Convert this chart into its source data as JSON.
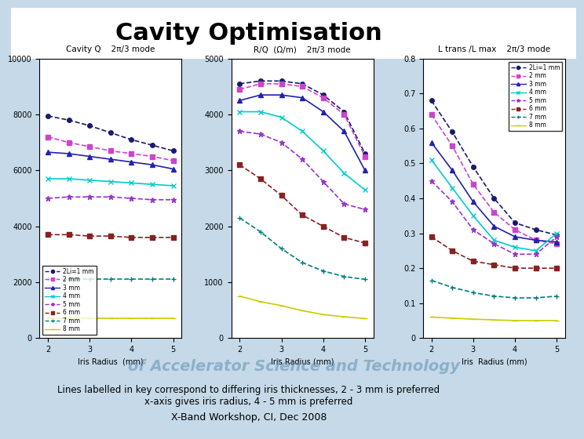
{
  "title": "Cavity Optimisation",
  "subtitle_text": "Lines labelled in key correspond to differing iris thicknesses, 2 - 3 mm is preferred\nx-axis gives iris radius, 4 - 5 mm is preferred",
  "footer": "X-Band Workshop, CI, Dec 2008",
  "bg_color": "#c5d9e8",
  "plot_bg": "#ffffff",
  "iris_radii": [
    2,
    2.5,
    3,
    3.5,
    4,
    4.5,
    5
  ],
  "legend_labels": [
    "2Li=1 mm",
    "2 mm",
    "3 mm",
    "4 mm",
    "5 mm",
    "6 mm",
    "7 mm",
    "8 mm"
  ],
  "legend_colors": [
    "#1a1a6e",
    "#cc44cc",
    "#2222aa",
    "#00cccc",
    "#9933cc",
    "#882222",
    "#008080",
    "#cccc00"
  ],
  "legend_markers": [
    "o",
    "s",
    "^",
    "x",
    "*",
    "s",
    "+",
    "-"
  ],
  "legend_linestyles": [
    "--",
    "--",
    "-",
    "-",
    "--",
    "--",
    "--",
    "-"
  ],
  "plot1_title": "Cavity Q    2π/3 mode",
  "plot1_ylabel": "",
  "plot1_xlabel": "Iris Radius  (mm)",
  "plot1_ylim": [
    0,
    10000
  ],
  "plot1_yticks": [
    0,
    2000,
    4000,
    6000,
    8000,
    10000
  ],
  "plot1_yticklabels": [
    "0",
    "2000",
    "4000",
    "6000",
    "8000",
    "10000"
  ],
  "plot1_data": [
    [
      7950,
      7800,
      7600,
      7350,
      7100,
      6900,
      6700
    ],
    [
      7200,
      7000,
      6850,
      6700,
      6600,
      6500,
      6350
    ],
    [
      6650,
      6600,
      6500,
      6400,
      6300,
      6200,
      6050
    ],
    [
      5700,
      5700,
      5650,
      5600,
      5550,
      5500,
      5450
    ],
    [
      5000,
      5050,
      5050,
      5050,
      5000,
      4950,
      4950
    ],
    [
      3700,
      3700,
      3650,
      3650,
      3600,
      3600,
      3600
    ],
    [
      2100,
      2100,
      2100,
      2100,
      2100,
      2100,
      2100
    ],
    [
      700,
      700,
      700,
      700,
      700,
      700,
      700
    ]
  ],
  "plot2_title": "R/Q  (Ω/m)    2π/3 mode",
  "plot2_ylabel": "",
  "plot2_xlabel": "Iris Radius (mm)",
  "plot2_ylim": [
    0,
    5000
  ],
  "plot2_yticks": [
    0,
    1000,
    2000,
    3000,
    4000,
    5000
  ],
  "plot2_yticklabels": [
    "0",
    "1000",
    "2000",
    "3000",
    "4000",
    "5000"
  ],
  "plot2_data": [
    [
      4550,
      4600,
      4600,
      4550,
      4350,
      4050,
      3300
    ],
    [
      4450,
      4550,
      4550,
      4500,
      4300,
      4000,
      3250
    ],
    [
      4250,
      4350,
      4350,
      4300,
      4050,
      3700,
      3000
    ],
    [
      4050,
      4050,
      3950,
      3700,
      3350,
      2950,
      2650
    ],
    [
      3700,
      3650,
      3500,
      3200,
      2800,
      2400,
      2300
    ],
    [
      3100,
      2850,
      2550,
      2200,
      2000,
      1800,
      1700
    ],
    [
      2150,
      1900,
      1600,
      1350,
      1200,
      1100,
      1050
    ],
    [
      750,
      650,
      580,
      490,
      420,
      380,
      350
    ]
  ],
  "plot3_title": "L trans /L max    2π/3 mode",
  "plot3_ylabel": "",
  "plot3_xlabel": "Iris  Radius (mm)",
  "plot3_ylim": [
    0,
    0.8
  ],
  "plot3_yticks": [
    0,
    0.1,
    0.2,
    0.3,
    0.4,
    0.5,
    0.6,
    0.7,
    0.8
  ],
  "plot3_yticklabels": [
    "0",
    "0.1",
    "0.2",
    "0.3",
    "0.4",
    "0.5",
    "0.6",
    "0.7",
    "0.8"
  ],
  "plot3_data": [
    [
      0.68,
      0.59,
      0.49,
      0.4,
      0.33,
      0.31,
      0.295
    ],
    [
      0.64,
      0.55,
      0.44,
      0.36,
      0.31,
      0.28,
      0.27
    ],
    [
      0.56,
      0.48,
      0.39,
      0.32,
      0.29,
      0.28,
      0.275
    ],
    [
      0.51,
      0.43,
      0.35,
      0.28,
      0.26,
      0.25,
      0.3
    ],
    [
      0.45,
      0.39,
      0.31,
      0.27,
      0.24,
      0.24,
      0.29
    ],
    [
      0.29,
      0.25,
      0.22,
      0.21,
      0.2,
      0.2,
      0.2
    ],
    [
      0.165,
      0.145,
      0.13,
      0.12,
      0.115,
      0.115,
      0.12
    ],
    [
      0.06,
      0.057,
      0.054,
      0.052,
      0.05,
      0.05,
      0.05
    ]
  ]
}
